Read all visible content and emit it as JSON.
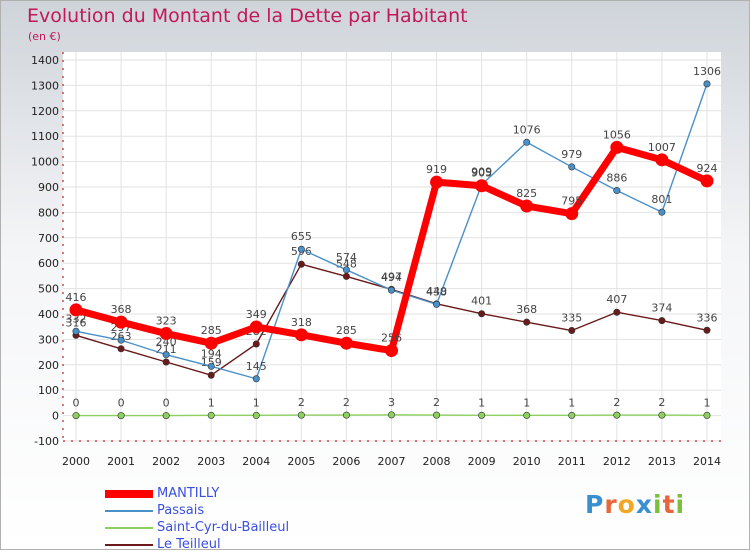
{
  "title": "Evolution du Montant de la Dette par Habitant",
  "subtitle": "(en €)",
  "logo": {
    "text": "Proxiti",
    "letter_colors": [
      "#3a8fd0",
      "#e8663c",
      "#f2a724",
      "#3a8fd0",
      "#7cbf3a",
      "#e8663c",
      "#7cbf3a"
    ]
  },
  "chart_data": {
    "type": "line",
    "title": "Evolution du Montant de la Dette par Habitant",
    "ylabel": "(en €)",
    "xlabel": "",
    "ylim": [
      -100,
      1400
    ],
    "yticks": [
      -100,
      0,
      100,
      200,
      300,
      400,
      500,
      600,
      700,
      800,
      900,
      1000,
      1100,
      1200,
      1300,
      1400
    ],
    "categories": [
      "2000",
      "2001",
      "2002",
      "2003",
      "2004",
      "2005",
      "2006",
      "2007",
      "2008",
      "2009",
      "2010",
      "2011",
      "2012",
      "2013",
      "2014"
    ],
    "series": [
      {
        "name": "Le Teilleul",
        "color": "#6a1a1a",
        "values": [
          316,
          263,
          211,
          159,
          282,
          596,
          548,
          497,
          440,
          401,
          368,
          335,
          407,
          374,
          336
        ]
      },
      {
        "name": "Passais",
        "color": "#4a90c8",
        "values": [
          332,
          297,
          240,
          194,
          145,
          655,
          574,
          494,
          438,
          909,
          1076,
          979,
          886,
          801,
          1306
        ]
      },
      {
        "name": "Saint-Cyr-du-Bailleul",
        "color": "#8cd060",
        "values": [
          0,
          0,
          0,
          1,
          1,
          2,
          2,
          3,
          2,
          1,
          1,
          1,
          2,
          2,
          1
        ]
      },
      {
        "name": "MANTILLY",
        "color": "#ff0000",
        "values": [
          416,
          368,
          323,
          285,
          349,
          318,
          285,
          256,
          919,
          905,
          825,
          795,
          1056,
          1007,
          924
        ]
      }
    ],
    "legend": [
      "MANTILLY",
      "Passais",
      "Saint-Cyr-du-Bailleul",
      "Le Teilleul"
    ],
    "legend_position": "bottom-left"
  }
}
